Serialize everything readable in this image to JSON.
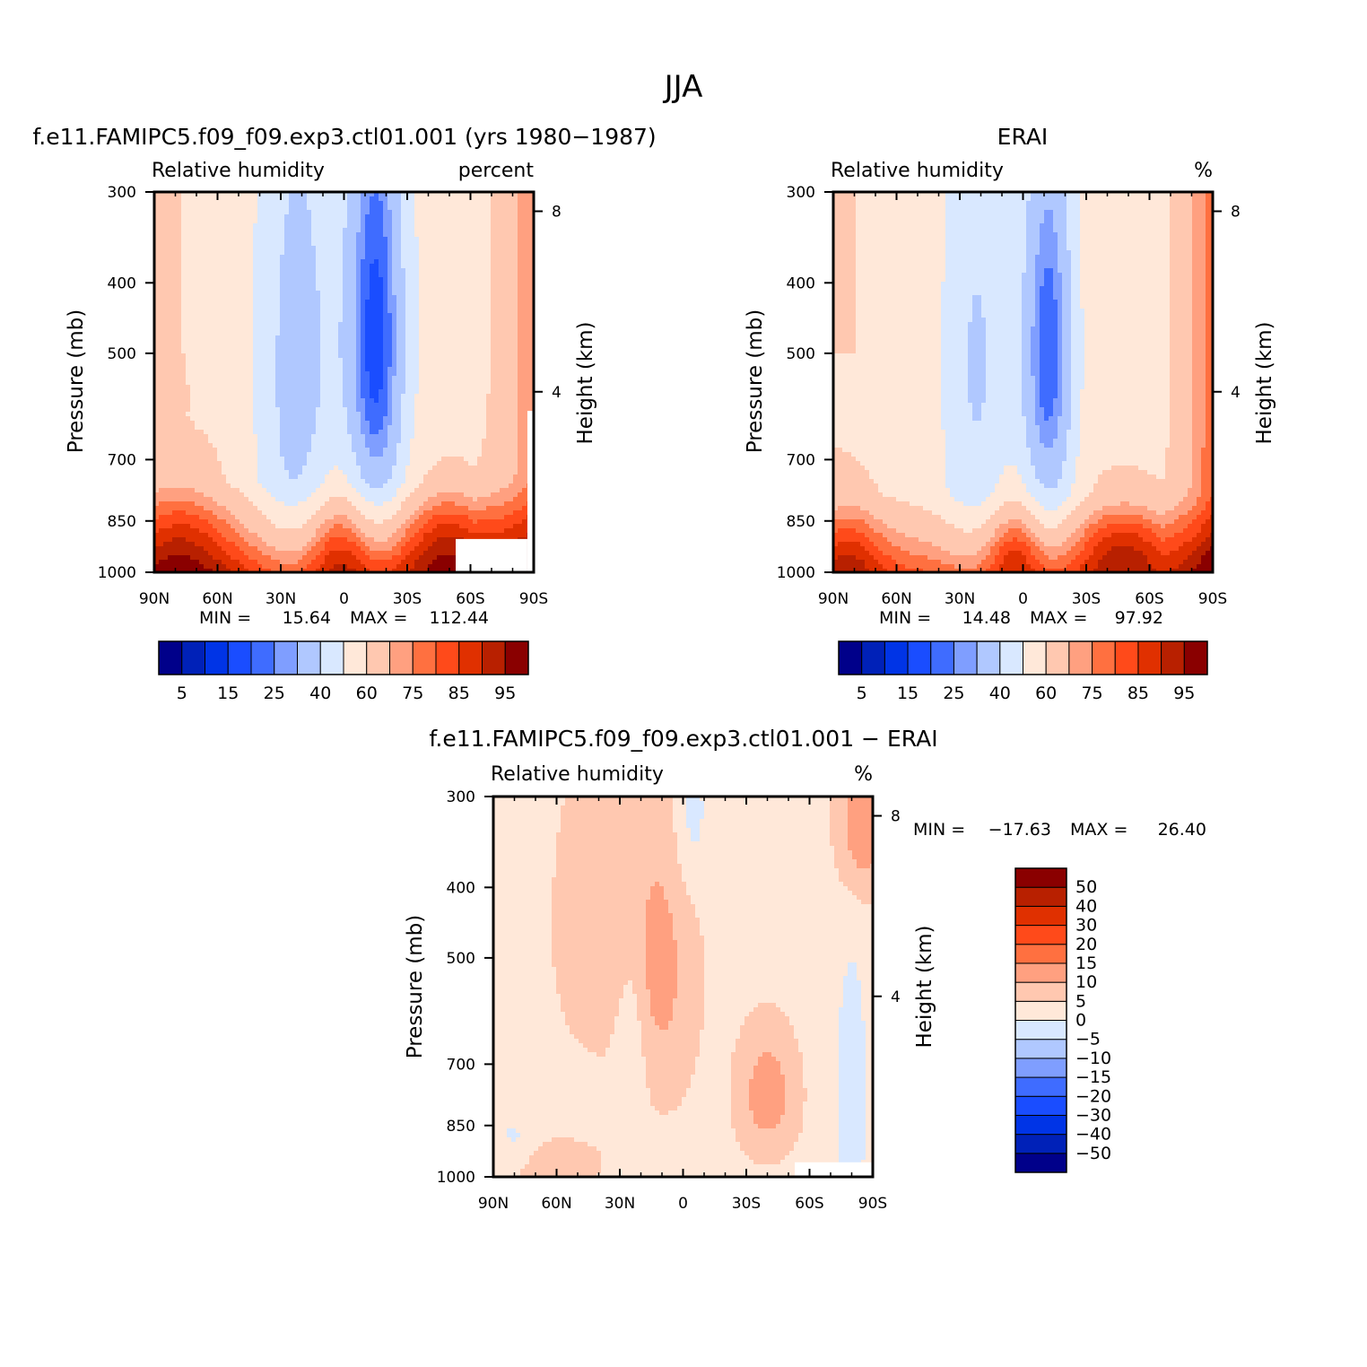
{
  "page": {
    "title": "JJA"
  },
  "colors": {
    "cmap_abs": [
      "#00008a",
      "#0021b8",
      "#0034e6",
      "#1a4dff",
      "#3f6cff",
      "#7f9eff",
      "#b0c8ff",
      "#d9e8ff",
      "#ffe8d9",
      "#ffc8b0",
      "#ffa080",
      "#ff7040",
      "#ff4a1a",
      "#e03000",
      "#b82000",
      "#8a0000"
    ],
    "cmap_diff": [
      "#00008a",
      "#0021b8",
      "#0034e6",
      "#1a4dff",
      "#3f6cff",
      "#7f9eff",
      "#b0c8ff",
      "#d9e8ff",
      "#ffe8d9",
      "#ffc8b0",
      "#ffa080",
      "#ff7040",
      "#ff4a1a",
      "#e03000",
      "#b82000",
      "#8a0000"
    ]
  },
  "chart_data": [
    {
      "id": "model",
      "type": "heatmap",
      "title": "f.e11.FAMIPC5.f09_f09.exp3.ctl01.001 (yrs 1980−1987)",
      "left_label": "Relative humidity",
      "right_label": "percent",
      "ylabel": "Pressure (mb)",
      "ylabel_right": "Height (km)",
      "xticks": [
        "90N",
        "60N",
        "30N",
        "0",
        "30S",
        "60S",
        "90S"
      ],
      "yticks": [
        "300",
        "400",
        "500",
        "700",
        "850",
        "1000"
      ],
      "ytick_values": [
        300,
        400,
        500,
        700,
        850,
        1000
      ],
      "right_ticks": [
        "8",
        "4"
      ],
      "right_tick_values": [
        8,
        4
      ],
      "ylim": [
        1000,
        300
      ],
      "xlim": [
        90,
        -90
      ],
      "min_label": "MIN =",
      "min_value": "15.64",
      "max_label": "MAX =",
      "max_value": "112.44",
      "colorbar_levels": [
        "5",
        "15",
        "25",
        "40",
        "60",
        "75",
        "85",
        "95"
      ]
    },
    {
      "id": "obs",
      "type": "heatmap",
      "title": "ERAI",
      "left_label": "Relative humidity",
      "right_label": "%",
      "ylabel": "Pressure (mb)",
      "ylabel_right": "Height (km)",
      "xticks": [
        "90N",
        "60N",
        "30N",
        "0",
        "30S",
        "60S",
        "90S"
      ],
      "yticks": [
        "300",
        "400",
        "500",
        "700",
        "850",
        "1000"
      ],
      "ytick_values": [
        300,
        400,
        500,
        700,
        850,
        1000
      ],
      "right_ticks": [
        "8",
        "4"
      ],
      "right_tick_values": [
        8,
        4
      ],
      "ylim": [
        1000,
        300
      ],
      "xlim": [
        90,
        -90
      ],
      "min_label": "MIN =",
      "min_value": "14.48",
      "max_label": "MAX =",
      "max_value": "97.92",
      "colorbar_levels": [
        "5",
        "15",
        "25",
        "40",
        "60",
        "75",
        "85",
        "95"
      ]
    },
    {
      "id": "diff",
      "type": "heatmap",
      "title": "f.e11.FAMIPC5.f09_f09.exp3.ctl01.001 − ERAI",
      "left_label": "Relative humidity",
      "right_label": "%",
      "ylabel": "Pressure (mb)",
      "ylabel_right": "Height (km)",
      "xticks": [
        "90N",
        "60N",
        "30N",
        "0",
        "30S",
        "60S",
        "90S"
      ],
      "yticks": [
        "300",
        "400",
        "500",
        "700",
        "850",
        "1000"
      ],
      "ytick_values": [
        300,
        400,
        500,
        700,
        850,
        1000
      ],
      "right_ticks": [
        "8",
        "4"
      ],
      "right_tick_values": [
        8,
        4
      ],
      "ylim": [
        1000,
        300
      ],
      "xlim": [
        90,
        -90
      ],
      "min_label": "MIN =",
      "min_value": "−17.63",
      "max_label": "MAX =",
      "max_value": "26.40",
      "colorbar_levels": [
        "50",
        "40",
        "30",
        "20",
        "15",
        "10",
        "5",
        "0",
        "−5",
        "−10",
        "−15",
        "−20",
        "−30",
        "−40",
        "−50"
      ]
    }
  ]
}
